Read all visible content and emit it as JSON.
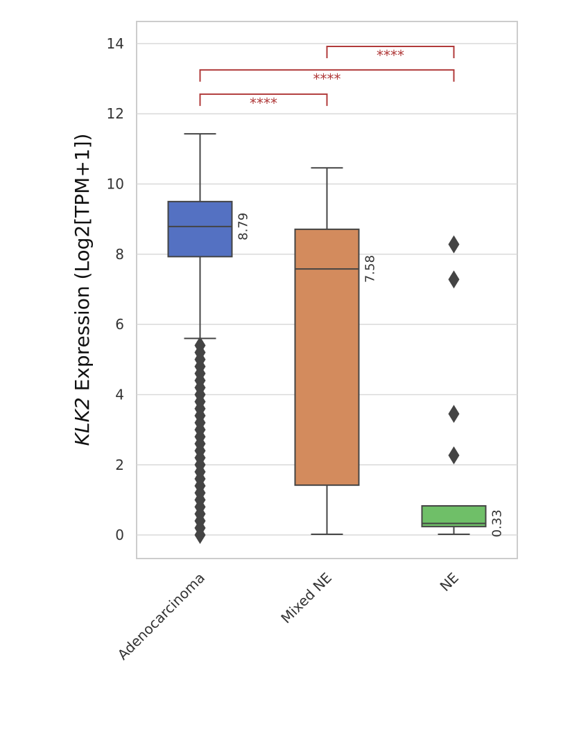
{
  "chart_data": {
    "type": "box",
    "ylabel": {
      "gene": "KLK2",
      "rest": " Expression (Log2[TPM+1])"
    },
    "categories": [
      "Adenocarcinoma",
      "Mixed NE",
      "NE"
    ],
    "boxes": [
      {
        "whislo": 5.6,
        "q1": 7.93,
        "median": 8.79,
        "q3": 9.5,
        "whishi": 11.43,
        "color": "#5471c2",
        "outliers": [
          0,
          0.2,
          0.4,
          0.6,
          0.8,
          1.0,
          1.2,
          1.4,
          1.6,
          1.8,
          2.0,
          2.2,
          2.4,
          2.6,
          2.8,
          3.0,
          3.2,
          3.4,
          3.6,
          3.8,
          4.0,
          4.2,
          4.4,
          4.6,
          4.8,
          5.0,
          5.2,
          5.4
        ]
      },
      {
        "whislo": 0.02,
        "q1": 1.42,
        "median": 7.58,
        "q3": 8.71,
        "whishi": 10.46,
        "color": "#d38b5d",
        "outliers": []
      },
      {
        "whislo": 0.02,
        "q1": 0.24,
        "median": 0.33,
        "q3": 0.83,
        "whishi": 0.83,
        "color": "#6fbf68",
        "outliers": [
          8.28,
          7.28,
          3.45,
          2.27
        ]
      }
    ],
    "annotations": [
      {
        "label": "****",
        "from": 0,
        "to": 1,
        "y": 12.56
      },
      {
        "label": "****",
        "from": 0,
        "to": 2,
        "y": 13.25
      },
      {
        "label": "****",
        "from": 1,
        "to": 2,
        "y": 13.92
      }
    ],
    "annotation_color": "#b03a3a",
    "ylim": [
      -0.67,
      14.63
    ],
    "yticks": [
      0,
      2,
      4,
      6,
      8,
      10,
      12,
      14
    ],
    "grid": true
  }
}
